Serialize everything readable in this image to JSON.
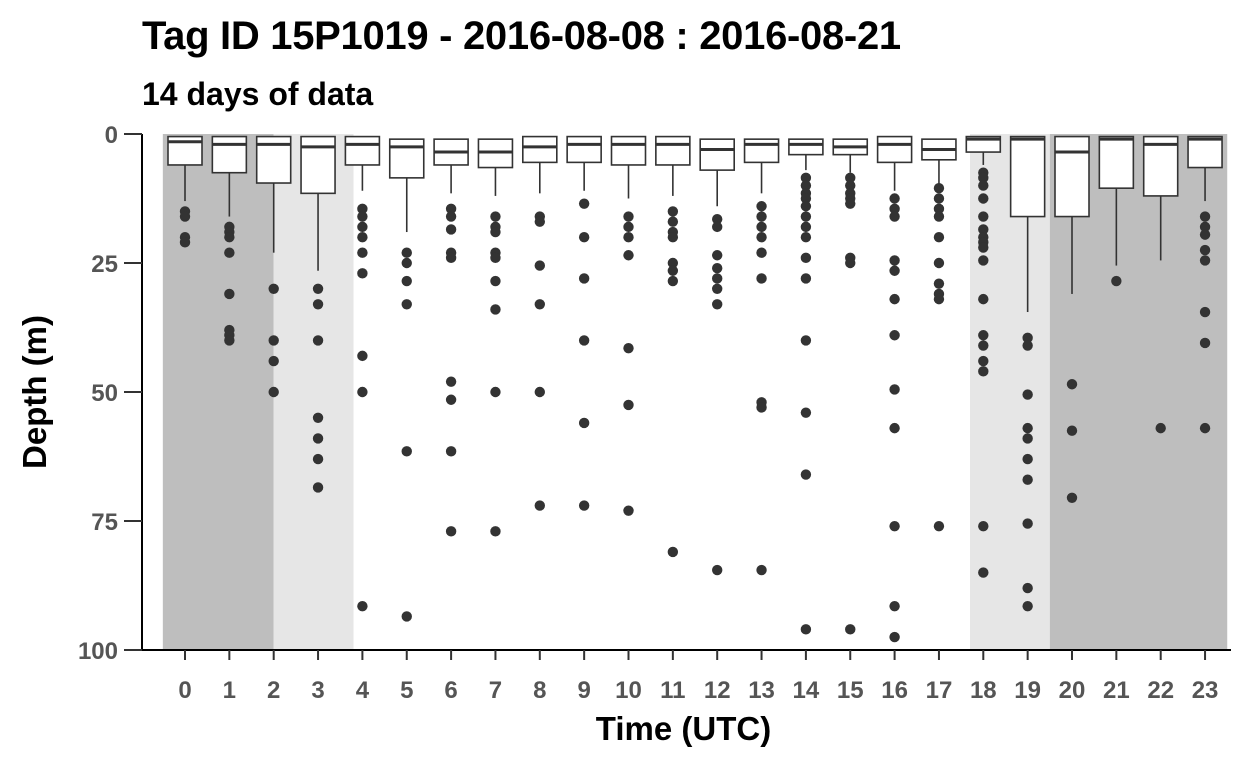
{
  "title": "Tag ID 15P1019 - 2016-08-08 : 2016-08-21",
  "subtitle": "14 days of data",
  "chart_data": {
    "type": "boxplot",
    "xlabel": "Time (UTC)",
    "ylabel": "Depth (m)",
    "ylim": [
      0,
      100
    ],
    "y_reversed": true,
    "y_ticks": [
      "0",
      "25",
      "50",
      "75",
      "100"
    ],
    "x_ticks": [
      "0",
      "1",
      "2",
      "3",
      "4",
      "5",
      "6",
      "7",
      "8",
      "9",
      "10",
      "11",
      "12",
      "13",
      "14",
      "15",
      "16",
      "17",
      "18",
      "19",
      "20",
      "21",
      "22",
      "23"
    ],
    "background_bands": [
      {
        "from": -0.5,
        "to": 2,
        "shade": "night",
        "color": "#bebebe"
      },
      {
        "from": 2,
        "to": 3.8,
        "shade": "twilight",
        "color": "#e6e6e6"
      },
      {
        "from": 17.7,
        "to": 19.5,
        "shade": "twilight",
        "color": "#e6e6e6"
      },
      {
        "from": 19.5,
        "to": 23.5,
        "shade": "night",
        "color": "#bebebe"
      }
    ],
    "boxes": [
      {
        "hour": 0,
        "q1": 0.5,
        "median": 1.5,
        "q3": 6,
        "whisker_high": 13,
        "outliers": [
          15,
          16,
          20,
          21
        ]
      },
      {
        "hour": 1,
        "q1": 0.5,
        "median": 2,
        "q3": 7.5,
        "whisker_high": 16,
        "outliers": [
          18,
          19,
          20,
          23,
          31,
          38,
          39,
          40
        ]
      },
      {
        "hour": 2,
        "q1": 0.5,
        "median": 2,
        "q3": 9.5,
        "whisker_high": 23,
        "outliers": [
          30,
          40,
          44,
          50
        ]
      },
      {
        "hour": 3,
        "q1": 0.5,
        "median": 2.5,
        "q3": 11.5,
        "whisker_high": 26.5,
        "outliers": [
          30,
          33,
          40,
          55,
          59,
          63,
          68.5
        ]
      },
      {
        "hour": 4,
        "q1": 0.5,
        "median": 2,
        "q3": 6,
        "whisker_high": 11,
        "outliers": [
          14.5,
          16,
          18,
          20,
          23,
          27,
          43,
          50,
          91.5
        ]
      },
      {
        "hour": 5,
        "q1": 1,
        "median": 2.5,
        "q3": 8.5,
        "whisker_high": 19,
        "outliers": [
          23,
          25,
          28.5,
          33,
          61.5,
          93.5
        ]
      },
      {
        "hour": 6,
        "q1": 1,
        "median": 3.5,
        "q3": 6,
        "whisker_high": 11.5,
        "outliers": [
          14.5,
          16,
          18.5,
          23,
          24,
          48,
          51.5,
          61.5,
          77
        ]
      },
      {
        "hour": 7,
        "q1": 1,
        "median": 3.5,
        "q3": 6.5,
        "whisker_high": 12,
        "outliers": [
          16,
          18,
          19,
          23,
          24,
          28.5,
          34,
          50,
          77
        ]
      },
      {
        "hour": 8,
        "q1": 0.5,
        "median": 2.5,
        "q3": 5.5,
        "whisker_high": 11.5,
        "outliers": [
          16,
          17,
          25.5,
          33,
          50,
          72
        ]
      },
      {
        "hour": 9,
        "q1": 0.5,
        "median": 2,
        "q3": 5.5,
        "whisker_high": 11,
        "outliers": [
          13.5,
          20,
          28,
          40,
          56,
          72
        ]
      },
      {
        "hour": 10,
        "q1": 0.5,
        "median": 2,
        "q3": 6,
        "whisker_high": 12.5,
        "outliers": [
          16,
          18,
          20,
          23.5,
          41.5,
          52.5,
          73
        ]
      },
      {
        "hour": 11,
        "q1": 0.5,
        "median": 2,
        "q3": 6,
        "whisker_high": 12,
        "outliers": [
          15,
          17,
          19,
          20,
          25,
          26.5,
          28.5,
          81
        ]
      },
      {
        "hour": 12,
        "q1": 1,
        "median": 3,
        "q3": 7,
        "whisker_high": 14,
        "outliers": [
          16.5,
          18,
          23.5,
          26,
          28,
          30,
          33,
          84.5
        ]
      },
      {
        "hour": 13,
        "q1": 1,
        "median": 2,
        "q3": 5.5,
        "whisker_high": 11.5,
        "outliers": [
          14,
          16,
          18,
          20,
          23,
          28,
          52,
          53,
          84.5
        ]
      },
      {
        "hour": 14,
        "q1": 1,
        "median": 2,
        "q3": 4,
        "whisker_high": 7,
        "outliers": [
          8.5,
          10,
          11.5,
          12.5,
          14,
          16,
          18,
          20,
          24,
          28,
          40,
          54,
          66,
          96
        ]
      },
      {
        "hour": 15,
        "q1": 1,
        "median": 2.5,
        "q3": 4,
        "whisker_high": 7.5,
        "outliers": [
          8.5,
          10,
          11.5,
          12.5,
          13.5,
          24,
          25,
          96
        ]
      },
      {
        "hour": 16,
        "q1": 0.5,
        "median": 2,
        "q3": 5.5,
        "whisker_high": 11,
        "outliers": [
          12.5,
          14.5,
          16,
          24.5,
          26.5,
          32,
          39,
          49.5,
          57,
          76,
          91.5,
          97.5
        ]
      },
      {
        "hour": 17,
        "q1": 1,
        "median": 3,
        "q3": 5,
        "whisker_high": 10,
        "outliers": [
          10.5,
          12.5,
          14.5,
          16,
          20,
          25,
          29,
          31,
          32,
          76
        ]
      },
      {
        "hour": 18,
        "q1": 0.5,
        "median": 1,
        "q3": 3.5,
        "whisker_high": 6,
        "outliers": [
          7.5,
          8.5,
          10,
          12.5,
          16,
          18.5,
          20,
          21,
          22,
          24.5,
          32,
          39,
          41,
          44,
          46,
          76,
          85
        ]
      },
      {
        "hour": 19,
        "q1": 0.5,
        "median": 1,
        "q3": 16,
        "whisker_high": 34.5,
        "outliers": [
          39.5,
          41,
          50.5,
          57,
          59,
          63,
          67,
          75.5,
          88,
          91.5
        ]
      },
      {
        "hour": 20,
        "q1": 0.5,
        "median": 3.5,
        "q3": 16,
        "whisker_high": 31,
        "outliers": [
          48.5,
          57.5,
          70.5
        ]
      },
      {
        "hour": 21,
        "q1": 0.5,
        "median": 1,
        "q3": 10.5,
        "whisker_high": 25.5,
        "outliers": [
          28.5
        ]
      },
      {
        "hour": 22,
        "q1": 0.5,
        "median": 2,
        "q3": 12,
        "whisker_high": 24.5,
        "outliers": [
          57
        ]
      },
      {
        "hour": 23,
        "q1": 0.5,
        "median": 1,
        "q3": 6.5,
        "whisker_high": 13,
        "outliers": [
          16,
          18,
          19.5,
          22.5,
          24.5,
          34.5,
          40.5,
          57
        ]
      }
    ],
    "box_fill": "#ffffff",
    "outlier_color": "#333333"
  }
}
